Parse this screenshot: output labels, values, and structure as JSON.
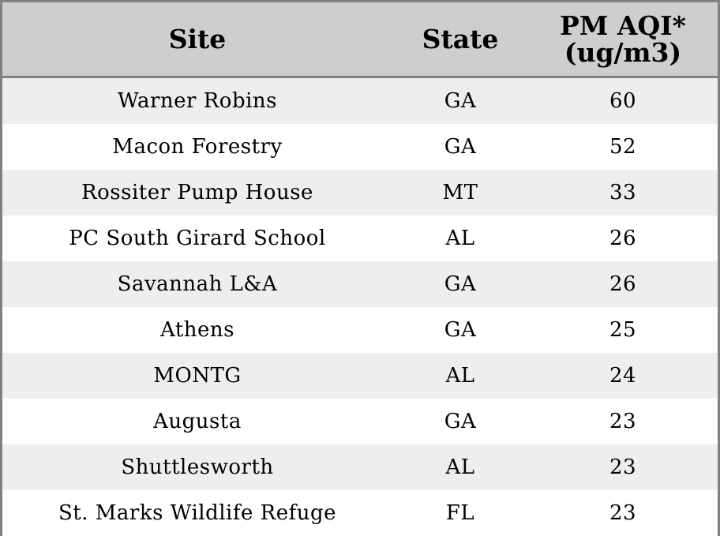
{
  "chart_data": {
    "type": "table",
    "columns": [
      "Site",
      "State",
      "PM AQI*",
      "(ug/m3)"
    ],
    "rows": [
      {
        "site": "Warner Robins",
        "state": "GA",
        "pm_aqi": 60
      },
      {
        "site": "Macon Forestry",
        "state": "GA",
        "pm_aqi": 52
      },
      {
        "site": "Rossiter Pump House",
        "state": "MT",
        "pm_aqi": 33
      },
      {
        "site": "PC South Girard School",
        "state": "AL",
        "pm_aqi": 26
      },
      {
        "site": "Savannah L&A",
        "state": "GA",
        "pm_aqi": 26
      },
      {
        "site": "Athens",
        "state": "GA",
        "pm_aqi": 25
      },
      {
        "site": "MONTG",
        "state": "AL",
        "pm_aqi": 24
      },
      {
        "site": "Augusta",
        "state": "GA",
        "pm_aqi": 23
      },
      {
        "site": "Shuttlesworth",
        "state": "AL",
        "pm_aqi": 23
      },
      {
        "site": "St. Marks Wildlife Refuge",
        "state": "FL",
        "pm_aqi": 23
      }
    ]
  },
  "colors": {
    "header_background": "#cecece",
    "row_shaded": "#eeeeee",
    "row_plain": "#ffffff",
    "border": "#808080",
    "text": "#000000"
  }
}
